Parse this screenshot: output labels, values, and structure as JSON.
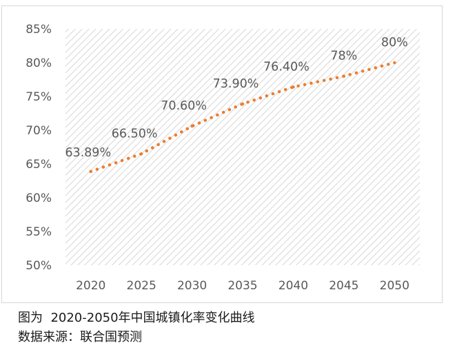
{
  "chart_data": {
    "type": "line",
    "title": "",
    "xlabel": "",
    "ylabel": "",
    "x": [
      "2020",
      "2025",
      "2030",
      "2035",
      "2040",
      "2045",
      "2050"
    ],
    "series": [
      {
        "values": [
          63.89,
          66.5,
          70.6,
          73.9,
          76.4,
          78,
          80
        ],
        "labels": [
          "63.89%",
          "66.50%",
          "70.60%",
          "73.90%",
          "76.40%",
          "78%",
          "80%"
        ],
        "color": "#ED7D31",
        "line_style": "dotted",
        "markers": false
      }
    ],
    "ylim": [
      50,
      85
    ],
    "y_ticks": [
      50,
      55,
      60,
      65,
      70,
      75,
      80,
      85
    ],
    "y_tick_labels": [
      "50%",
      "55%",
      "60%",
      "65%",
      "70%",
      "75%",
      "80%",
      "85%"
    ],
    "plot_area_fill": "diagonal hatch",
    "grid": false,
    "legend": "none"
  },
  "caption": {
    "title": "图为  2020-2050年中国城镇化率变化曲线",
    "source": "数据来源：联合国预测"
  },
  "colors": {
    "series_line": "#ED7D31",
    "hatch": "#d9d9d9",
    "axis_text": "#595959",
    "caption_text": "#1a1a1a"
  }
}
